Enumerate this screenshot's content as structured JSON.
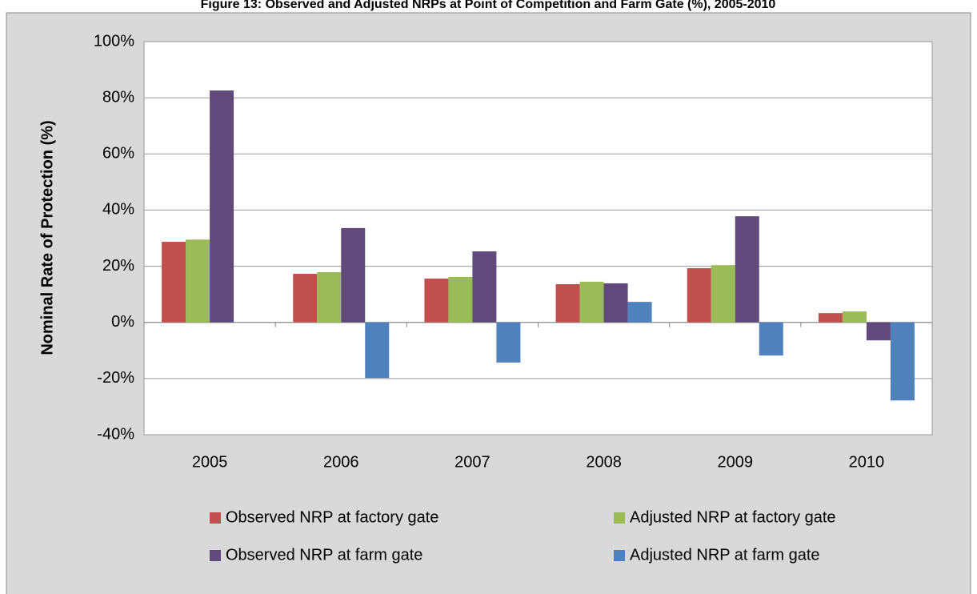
{
  "chart_data": {
    "type": "bar",
    "title": "Figure 13: Observed and Adjusted NRPs at Point of Competition and Farm Gate (%), 2005-2010",
    "y_label": "Nominal Rate of Protection (%)",
    "categories": [
      "2005",
      "2006",
      "2007",
      "2008",
      "2009",
      "2010"
    ],
    "series": [
      {
        "name": "Observed NRP at factory gate",
        "color": "#c0504d",
        "values": [
          28.7,
          17.3,
          15.6,
          13.6,
          19.3,
          3.3
        ]
      },
      {
        "name": "Adjusted NRP at factory gate",
        "color": "#9bbb59",
        "values": [
          29.5,
          17.9,
          16.2,
          14.5,
          20.4,
          3.9
        ]
      },
      {
        "name": "Observed NRP at farm gate",
        "color": "#604a7b",
        "values": [
          82.6,
          33.6,
          25.3,
          13.9,
          37.8,
          -6.4
        ]
      },
      {
        "name": "Adjusted NRP at farm gate",
        "color": "#4f81bd",
        "values": [
          0,
          -19.8,
          -14.3,
          7.3,
          -11.8,
          -27.8
        ]
      }
    ],
    "ylim": [
      -40,
      100
    ],
    "yticks": [
      {
        "value": -40,
        "label": "-40%"
      },
      {
        "value": -20,
        "label": "-20%"
      },
      {
        "value": 0,
        "label": "0%"
      },
      {
        "value": 20,
        "label": "20%"
      },
      {
        "value": 40,
        "label": "40%"
      },
      {
        "value": 60,
        "label": "60%"
      },
      {
        "value": 80,
        "label": "80%"
      },
      {
        "value": 100,
        "label": "100%"
      }
    ],
    "grid": true
  }
}
